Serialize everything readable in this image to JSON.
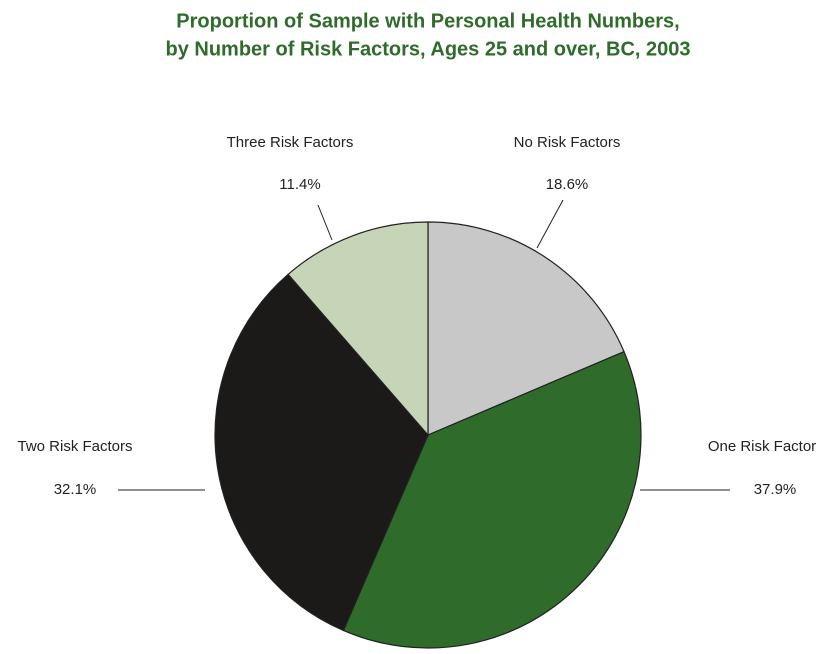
{
  "chart_data": {
    "type": "pie",
    "title": [
      "Proportion of Sample with Personal Health Numbers,",
      "by Number of Risk Factors, Ages 25 and over, BC, 2003"
    ],
    "categories": [
      "No Risk Factors",
      "One Risk Factor",
      "Two Risk Factors",
      "Three Risk Factors"
    ],
    "values": [
      18.6,
      37.9,
      32.1,
      11.4
    ],
    "value_labels": [
      "18.6%",
      "37.9%",
      "32.1%",
      "11.4%"
    ],
    "colors": [
      "#c8c8c8",
      "#2f6b2b",
      "#1c1a19",
      "#c6d4b8"
    ]
  }
}
